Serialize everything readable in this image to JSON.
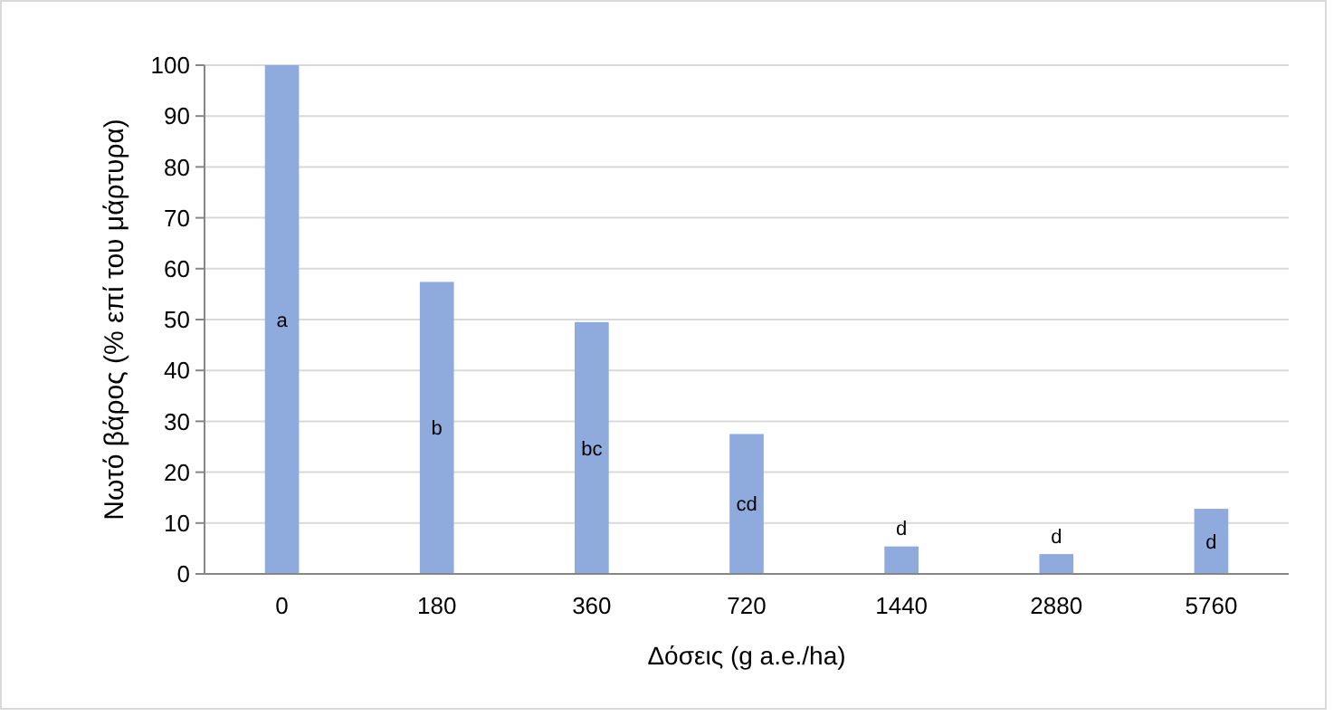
{
  "chart_data": {
    "type": "bar",
    "xlabel": "Δόσεις (g a.e./ha)",
    "ylabel": "Νωτό βάρος (% επί του μάρτυρα)",
    "categories": [
      "0",
      "180",
      "360",
      "720",
      "1440",
      "2880",
      "5760"
    ],
    "values": [
      100,
      57.4,
      49.5,
      27.5,
      5.4,
      3.9,
      12.8
    ],
    "value_labels": [
      "a",
      "b",
      "bc",
      "cd",
      "d",
      "d",
      "d"
    ],
    "color": "#8faadc",
    "ylim": [
      0,
      100
    ],
    "yticks": [
      0,
      10,
      20,
      30,
      40,
      50,
      60,
      70,
      80,
      90,
      100
    ],
    "grid": "y"
  }
}
